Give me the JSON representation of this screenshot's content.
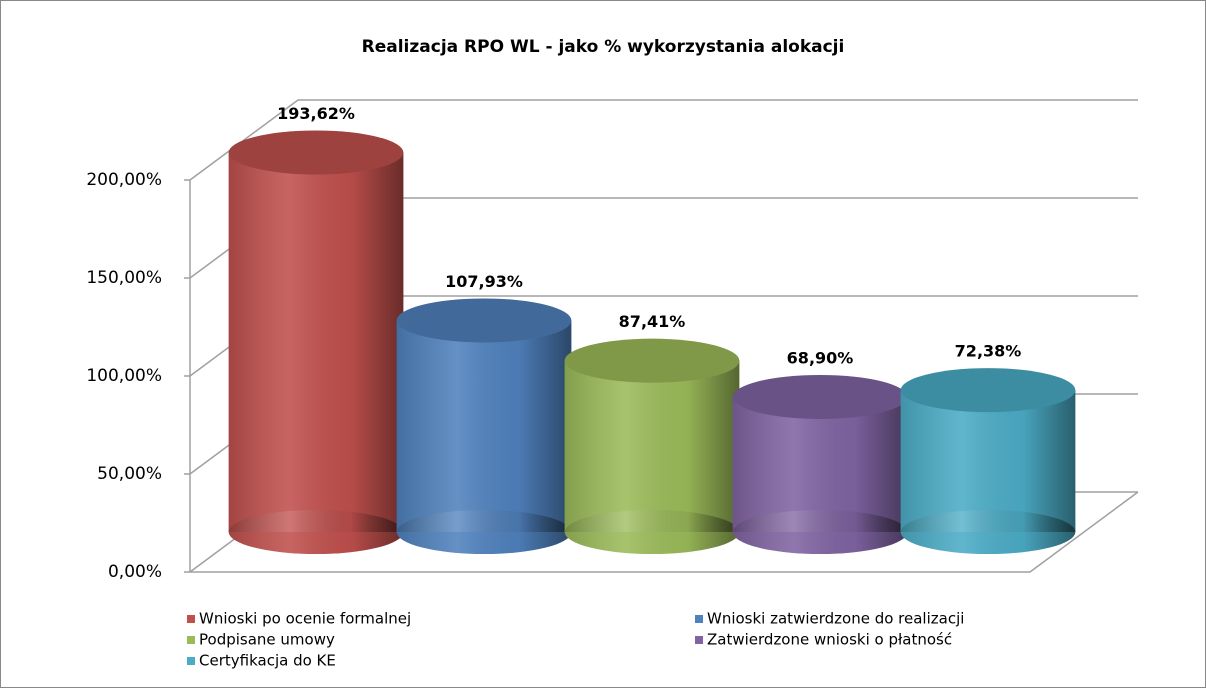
{
  "chart_data": {
    "type": "bar3d",
    "title": "Realizacja RPO WL - jako % wykorzystania alokacji",
    "ylim": [
      0,
      200
    ],
    "yticks": [
      {
        "value": 0,
        "label": "0,00%"
      },
      {
        "value": 50,
        "label": "50,00%"
      },
      {
        "value": 100,
        "label": "100,00%"
      },
      {
        "value": 150,
        "label": "150,00%"
      },
      {
        "value": 200,
        "label": "200,00%"
      }
    ],
    "grid": true,
    "legend": "bottom",
    "series": [
      {
        "name": "Wnioski po ocenie formalnej",
        "color": "#c0504d",
        "values": [
          193.62
        ],
        "value_labels": [
          "193,62%"
        ]
      },
      {
        "name": "Wnioski zatwierdzone do realizacji",
        "color": "#4f81bd",
        "values": [
          107.93
        ],
        "value_labels": [
          "107,93%"
        ]
      },
      {
        "name": "Podpisane umowy",
        "color": "#9bbb59",
        "values": [
          87.41
        ],
        "value_labels": [
          "87,41%"
        ]
      },
      {
        "name": "Zatwierdzone wnioski o płatność",
        "color": "#8064a2",
        "values": [
          68.9
        ],
        "value_labels": [
          "68,90%"
        ]
      },
      {
        "name": "Certyfikacja do KE",
        "color": "#4bacc6",
        "values": [
          72.38
        ],
        "value_labels": [
          "72,38%"
        ]
      }
    ]
  }
}
